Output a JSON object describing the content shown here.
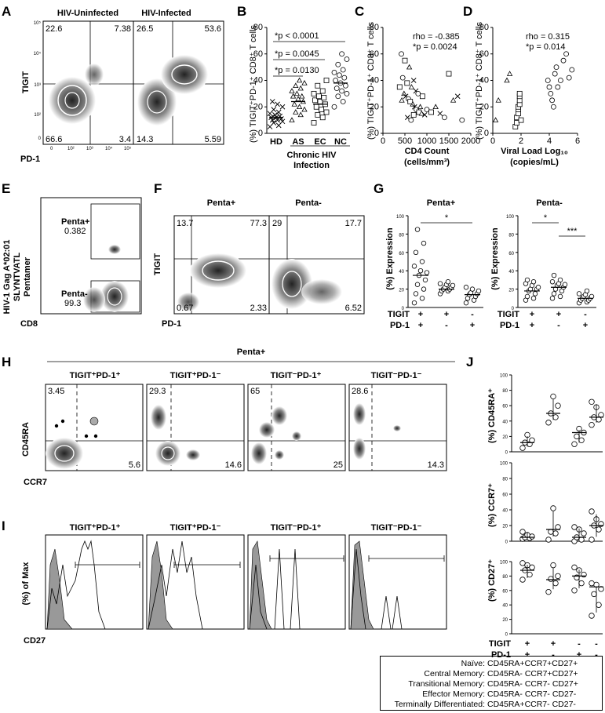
{
  "panels": [
    "A",
    "B",
    "C",
    "D",
    "E",
    "F",
    "G",
    "H",
    "I",
    "J"
  ],
  "A": {
    "titles": [
      "HIV-Uninfected",
      "HIV-Infected"
    ],
    "ylabel": "TIGIT",
    "xlabel": "PD-1",
    "quadrants": [
      [
        "22.6",
        "7.38",
        "66.6",
        "3.4"
      ],
      [
        "26.5",
        "53.6",
        "14.3",
        "5.59"
      ]
    ],
    "ticks_y": [
      "10⁵",
      "10⁴",
      "10³",
      "10²",
      "0"
    ],
    "ticks_x": [
      "0",
      "10²",
      "10³",
      "10⁴",
      "10⁵"
    ]
  },
  "B": {
    "ylabel": "(%) TIGIT⁺PD-1⁺ CD8⁺ T cells",
    "ticks": [
      "0",
      "20",
      "40",
      "60",
      "80"
    ],
    "categories": [
      "HD",
      "AS",
      "EC",
      "NC"
    ],
    "group_label_1": "Chronic HIV",
    "group_label_2": "Infection",
    "stats": [
      "*p < 0.0001",
      "*p = 0.0045",
      "*p = 0.0130"
    ]
  },
  "C": {
    "ylabel": "(%) TIGIT⁺PD-1⁺ CD8⁺ T cells",
    "xlabel_1": "CD4 Count",
    "xlabel_2": "(cells/mm³)",
    "rho": "rho = -0.385",
    "p": "*p = 0.0024",
    "ticks_x": [
      "0",
      "500",
      "1000",
      "1500",
      "2000"
    ],
    "ticks_y": [
      "0",
      "20",
      "40",
      "60",
      "80"
    ]
  },
  "D": {
    "ylabel": "(%) TIGIT⁺PD-1⁺ CD8⁺ T cells",
    "xlabel_1": "Viral Load Log₁₀",
    "xlabel_2": "(copies/mL)",
    "rho": "rho = 0.315",
    "p": "*p = 0.014",
    "ticks_x": [
      "0",
      "2",
      "4",
      "6"
    ],
    "ticks_y": [
      "0",
      "20",
      "40",
      "60",
      "80"
    ]
  },
  "E": {
    "ylabel_1": "HIV-1 Gag A*02:01",
    "ylabel_2": "SLYNTVATL",
    "ylabel_3": "Pentamer",
    "xlabel": "CD8",
    "gate_pos": "Penta+",
    "gate_pos_val": "0.382",
    "gate_neg": "Penta-",
    "gate_neg_val": "99.3"
  },
  "F": {
    "titles": [
      "Penta+",
      "Penta-"
    ],
    "ylabel": "TIGIT",
    "xlabel": "PD-1",
    "quadrants": [
      [
        "13.7",
        "77.3",
        "0.67",
        "2.33"
      ],
      [
        "29",
        "17.7",
        "",
        "6.52"
      ]
    ]
  },
  "G": {
    "titles": [
      "Penta+",
      "Penta-"
    ],
    "ylabel": "(%) Expression",
    "ticks": [
      "0",
      "20",
      "40",
      "60",
      "80",
      "100"
    ],
    "row_labels": [
      "TIGIT",
      "PD-1"
    ],
    "signs_tigit": [
      "+",
      "+",
      "-"
    ],
    "signs_pd1": [
      "+",
      "-",
      "+"
    ],
    "stars_left": [
      "*"
    ],
    "stars_right": [
      "*",
      "***"
    ]
  },
  "H": {
    "header": "Penta+",
    "titles": [
      "TIGIT⁺PD-1⁺",
      "TIGIT⁺PD-1⁻",
      "TIGIT⁻PD-1⁺",
      "TIGIT⁻PD-1⁻"
    ],
    "ylabel": "CD45RA",
    "xlabel": "CCR7",
    "top_left": [
      "3.45",
      "29.3",
      "65",
      "28.6"
    ],
    "bottom_right": [
      "5.6",
      "14.6",
      "25",
      "14.3"
    ]
  },
  "I": {
    "titles": [
      "TIGIT⁺PD-1⁺",
      "TIGIT⁺PD-1⁻",
      "TIGIT⁻PD-1⁺",
      "TIGIT⁻PD-1⁻"
    ],
    "ylabel": "(%) of Max",
    "xlabel": "CD27"
  },
  "J": {
    "ylabels": [
      "(%) CD45RA⁺",
      "(%) CCR7⁺",
      "(%) CD27⁺"
    ],
    "ticks": [
      "0",
      "20",
      "40",
      "60",
      "80",
      "100"
    ],
    "row_labels": [
      "TIGIT",
      "PD-1"
    ],
    "signs_tigit": [
      "+",
      "+",
      "-",
      "-"
    ],
    "signs_pd1": [
      "+",
      "-",
      "+",
      "-"
    ]
  },
  "legend": [
    {
      "name": "Naïve:",
      "def": "CD45RA+CCR7+CD27+"
    },
    {
      "name": "Central Memory:",
      "def": "CD45RA- CCR7+CD27+"
    },
    {
      "name": "Transitional Memory:",
      "def": "CD45RA- CCR7- CD27+"
    },
    {
      "name": "Effector Memory:",
      "def": "CD45RA- CCR7- CD27-"
    },
    {
      "name": "Terminally Differentiated:",
      "def": "CD45RA+CCR7- CD27-"
    }
  ],
  "chart_data": [
    {
      "panel": "B",
      "type": "scatter",
      "categories": [
        "HD",
        "AS",
        "EC",
        "NC"
      ],
      "ylim": [
        0,
        80
      ],
      "series": [
        {
          "name": "HD",
          "marker": "x",
          "values": [
            5,
            6,
            8,
            9,
            10,
            10,
            11,
            12,
            12,
            13,
            14,
            15,
            16,
            18,
            20,
            22,
            24
          ]
        },
        {
          "name": "AS",
          "marker": "triangle",
          "values": [
            10,
            14,
            16,
            18,
            20,
            22,
            24,
            26,
            28,
            28,
            30,
            32,
            34,
            36,
            38,
            40
          ]
        },
        {
          "name": "EC",
          "marker": "square",
          "values": [
            8,
            12,
            14,
            16,
            18,
            20,
            22,
            24,
            25,
            27,
            28,
            30,
            32,
            36,
            40
          ]
        },
        {
          "name": "NC",
          "marker": "circle",
          "values": [
            20,
            24,
            28,
            30,
            32,
            34,
            36,
            38,
            40,
            42,
            44,
            46,
            48,
            52,
            56,
            60
          ]
        }
      ],
      "medians": [
        12,
        24,
        22,
        38
      ]
    },
    {
      "panel": "C",
      "type": "scatter",
      "xlim": [
        0,
        2000
      ],
      "ylim": [
        0,
        80
      ],
      "points": [
        [
          420,
          60
        ],
        [
          500,
          55
        ],
        [
          600,
          50
        ],
        [
          700,
          40
        ],
        [
          450,
          42
        ],
        [
          550,
          38
        ],
        [
          650,
          35
        ],
        [
          750,
          32
        ],
        [
          800,
          30
        ],
        [
          900,
          28
        ],
        [
          480,
          30
        ],
        [
          520,
          28
        ],
        [
          580,
          26
        ],
        [
          620,
          24
        ],
        [
          680,
          22
        ],
        [
          720,
          20
        ],
        [
          760,
          18
        ],
        [
          820,
          16
        ],
        [
          880,
          15
        ],
        [
          950,
          14
        ],
        [
          1000,
          18
        ],
        [
          1100,
          16
        ],
        [
          1200,
          20
        ],
        [
          1300,
          15
        ],
        [
          1400,
          12
        ],
        [
          1500,
          45
        ],
        [
          1600,
          25
        ],
        [
          1700,
          28
        ],
        [
          1800,
          10
        ],
        [
          380,
          35
        ],
        [
          430,
          25
        ],
        [
          560,
          12
        ],
        [
          640,
          10
        ],
        [
          700,
          14
        ],
        [
          850,
          20
        ]
      ]
    },
    {
      "panel": "D",
      "type": "scatter",
      "xlim": [
        0,
        6
      ],
      "ylim": [
        0,
        80
      ],
      "points": [
        [
          0.2,
          10
        ],
        [
          0.4,
          25
        ],
        [
          1.0,
          40
        ],
        [
          1.2,
          45
        ],
        [
          1.6,
          5
        ],
        [
          1.7,
          8
        ],
        [
          1.7,
          12
        ],
        [
          1.8,
          15
        ],
        [
          1.8,
          18
        ],
        [
          1.8,
          20
        ],
        [
          1.9,
          22
        ],
        [
          1.9,
          25
        ],
        [
          1.9,
          28
        ],
        [
          1.9,
          30
        ],
        [
          2.0,
          10
        ],
        [
          3.9,
          40
        ],
        [
          4.0,
          35
        ],
        [
          4.1,
          30
        ],
        [
          4.2,
          25
        ],
        [
          4.3,
          20
        ],
        [
          4.4,
          45
        ],
        [
          4.5,
          50
        ],
        [
          4.6,
          35
        ],
        [
          4.8,
          40
        ],
        [
          5.0,
          55
        ],
        [
          5.2,
          60
        ],
        [
          5.4,
          42
        ],
        [
          5.6,
          48
        ]
      ]
    },
    {
      "panel": "G-Penta+",
      "type": "scatter",
      "ylim": [
        0,
        100
      ],
      "series": [
        {
          "values": [
            5,
            10,
            15,
            20,
            25,
            30,
            35,
            38,
            40,
            45,
            50,
            60,
            70,
            85
          ]
        },
        {
          "values": [
            15,
            18,
            18,
            20,
            20,
            22,
            22,
            24,
            25,
            26,
            28
          ]
        },
        {
          "values": [
            5,
            8,
            10,
            12,
            14,
            15,
            16,
            18,
            20,
            22
          ]
        }
      ],
      "medians": [
        35,
        20,
        14
      ]
    },
    {
      "panel": "G-Penta-",
      "type": "scatter",
      "ylim": [
        0,
        100
      ],
      "series": [
        {
          "values": [
            8,
            10,
            12,
            15,
            18,
            20,
            20,
            22,
            24,
            26,
            28,
            30
          ]
        },
        {
          "values": [
            10,
            12,
            15,
            18,
            20,
            22,
            24,
            25,
            26,
            28,
            30,
            35
          ]
        },
        {
          "values": [
            5,
            6,
            8,
            8,
            10,
            10,
            12,
            12,
            14,
            15,
            18
          ]
        }
      ],
      "medians": [
        18,
        22,
        10
      ]
    },
    {
      "panel": "J-CD45RA",
      "type": "scatter",
      "ylim": [
        0,
        100
      ],
      "series": [
        {
          "values": [
            5,
            10,
            12,
            15,
            22
          ]
        },
        {
          "values": [
            38,
            45,
            50,
            60,
            72
          ]
        },
        {
          "values": [
            10,
            15,
            20,
            25,
            30
          ]
        },
        {
          "values": [
            35,
            42,
            45,
            48,
            58,
            65
          ]
        }
      ],
      "medians": [
        12,
        50,
        25,
        45
      ]
    },
    {
      "panel": "J-CCR7",
      "type": "scatter",
      "ylim": [
        0,
        100
      ],
      "series": [
        {
          "values": [
            3,
            4,
            5,
            6,
            8,
            12
          ]
        },
        {
          "values": [
            2,
            10,
            12,
            18,
            42
          ]
        },
        {
          "values": [
            0,
            2,
            5,
            10,
            15,
            18
          ]
        },
        {
          "values": [
            2,
            15,
            20,
            22,
            28,
            38
          ]
        }
      ],
      "medians": [
        5,
        15,
        5,
        20
      ]
    },
    {
      "panel": "J-CD27",
      "type": "scatter",
      "ylim": [
        0,
        100
      ],
      "series": [
        {
          "values": [
            75,
            82,
            88,
            92,
            95,
            98
          ]
        },
        {
          "values": [
            58,
            70,
            76,
            80,
            95
          ]
        },
        {
          "values": [
            60,
            70,
            78,
            82,
            88,
            92
          ]
        },
        {
          "values": [
            25,
            40,
            55,
            62,
            68,
            70
          ]
        }
      ],
      "medians": [
        88,
        75,
        80,
        65
      ]
    }
  ]
}
